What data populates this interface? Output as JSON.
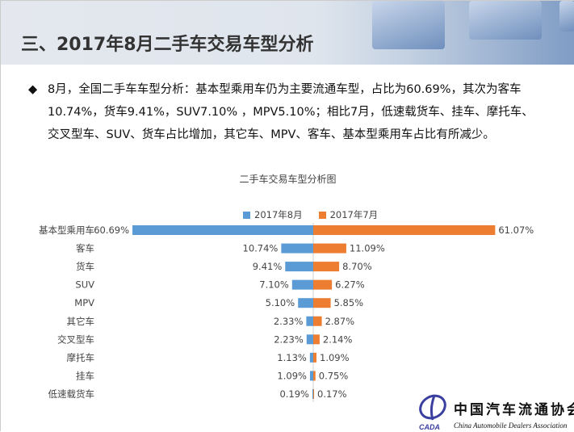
{
  "header": {
    "title": "三、2017年8月二手车交易车型分析"
  },
  "summary": {
    "bullet": "◆",
    "text": "8月，全国二手车车型分析：基本型乘用车仍为主要流通车型，占比为60.69%，其次为客车10.74%，货车9.41%，SUV7.10% ，MPV5.10%；相比7月，低速载货车、挂车、摩托车、交叉型车、SUV、货车占比增加，其它车、MPV、客车、基本型乘用车占比有所减少。"
  },
  "chart_data": {
    "type": "bar",
    "orientation": "horizontal-butterfly",
    "title": "二手车交易车型分析图",
    "categories": [
      "基本型乘用车",
      "客车",
      "货车",
      "SUV",
      "MPV",
      "其它车",
      "交叉型车",
      "摩托车",
      "挂车",
      "低速载货车"
    ],
    "series": [
      {
        "name": "2017年8月",
        "color": "#5b9bd5",
        "values": [
          60.69,
          10.74,
          9.41,
          7.1,
          5.1,
          2.33,
          2.23,
          1.13,
          1.09,
          0.19
        ],
        "labels": [
          "60.69%",
          "10.74%",
          "9.41%",
          "7.10%",
          "5.10%",
          "2.33%",
          "2.23%",
          "1.13%",
          "1.09%",
          "0.19%"
        ]
      },
      {
        "name": "2017年7月",
        "color": "#ed7d31",
        "values": [
          61.07,
          11.09,
          8.7,
          6.27,
          5.85,
          2.87,
          2.14,
          1.09,
          0.75,
          0.17
        ],
        "labels": [
          "61.07%",
          "11.09%",
          "8.70%",
          "6.27%",
          "5.85%",
          "2.87%",
          "2.14%",
          "1.09%",
          "0.75%",
          "0.17%"
        ]
      }
    ],
    "legend": "top",
    "grid": false
  },
  "logo": {
    "name_cn": "中国汽车流通协会",
    "name_en": "China Automobile Dealers Association",
    "abbr": "CADA"
  }
}
